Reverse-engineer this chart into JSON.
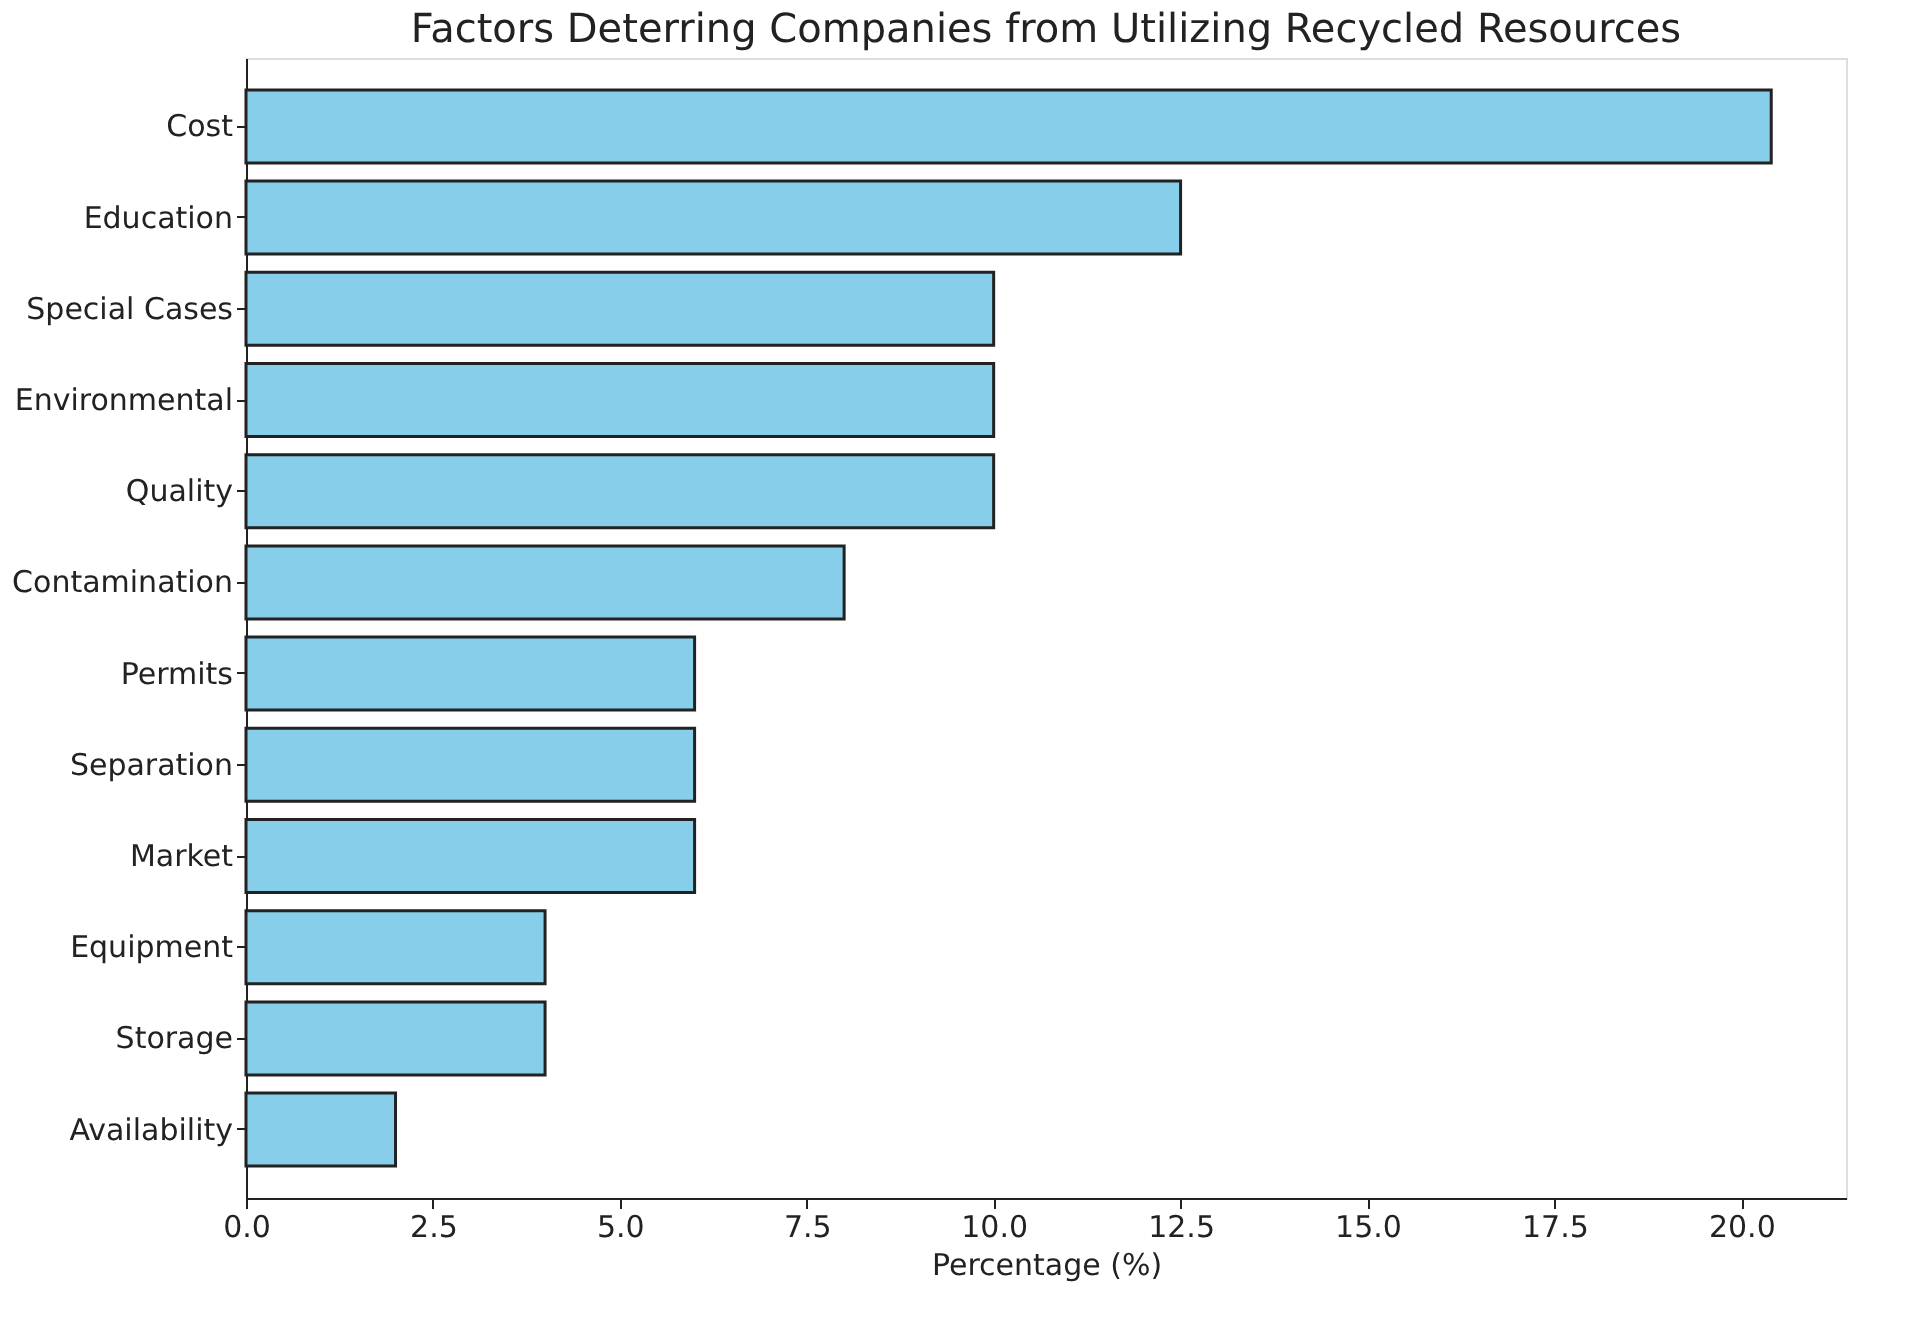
{
  "chart_data": {
    "type": "bar",
    "orientation": "horizontal",
    "title": "Factors Deterring Companies from Utilizing Recycled Resources",
    "xlabel": "Percentage (%)",
    "categories": [
      "Cost",
      "Education",
      "Special Cases",
      "Environmental",
      "Quality",
      "Contamination",
      "Permits",
      "Separation",
      "Market",
      "Equipment",
      "Storage",
      "Availability"
    ],
    "values": [
      20.4,
      12.5,
      10,
      10,
      10,
      8,
      6,
      6,
      6,
      4,
      4,
      2
    ],
    "color": "#87ceeb",
    "xlim": [
      0,
      21.4
    ],
    "xticks": [
      {
        "value": 0,
        "label": "0.0"
      },
      {
        "value": 2.5,
        "label": "2.5"
      },
      {
        "value": 5,
        "label": "5.0"
      },
      {
        "value": 7.5,
        "label": "7.5"
      },
      {
        "value": 10,
        "label": "10.0"
      },
      {
        "value": 12.5,
        "label": "12.5"
      },
      {
        "value": 15,
        "label": "15.0"
      },
      {
        "value": 17.5,
        "label": "17.5"
      },
      {
        "value": 20,
        "label": "20.0"
      }
    ],
    "grid": false
  }
}
